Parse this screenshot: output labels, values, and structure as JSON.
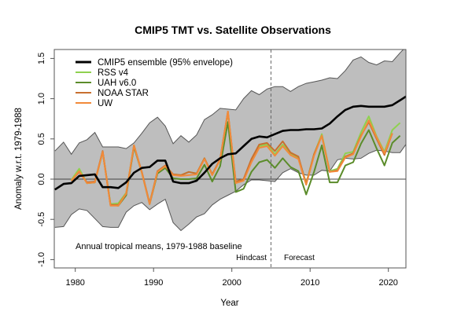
{
  "chart_data": {
    "type": "line",
    "title": "CMIP5 TMT vs. Satellite Observations",
    "xlabel": "Year",
    "ylabel": "Anomaly w.r.t. 1979-1988",
    "xlim": [
      1977.4,
      2022.3
    ],
    "ylim": [
      -1.1,
      1.6
    ],
    "xticks": [
      1980,
      1990,
      2000,
      2010,
      2020
    ],
    "xtick_labels": [
      "1980",
      "1990",
      "2000",
      "2010",
      "2020"
    ],
    "yticks": [
      -1.0,
      -0.5,
      0.0,
      0.5,
      1.0,
      1.5
    ],
    "ytick_labels": [
      "-1.0",
      "-0.5",
      "0.0",
      "0.5",
      "1.0",
      "1.5"
    ],
    "grid": false,
    "zero_line": true,
    "legend_position": "top-left",
    "annotations": {
      "baseline_note": "Annual tropical means, 1979-1988 baseline",
      "hindcast_label": "Hindcast",
      "forecast_label": "Forecast",
      "divider_year": 2005
    },
    "colors": {
      "envelope_fill": "#bebebe",
      "envelope_edge": "#555555",
      "ensemble": "#000000",
      "RSS v4": "#8fd14f",
      "UAH v6.0": "#5b8c2a",
      "NOAA STAR": "#c8702f",
      "UW": "#f28a3a"
    },
    "envelope": {
      "name": "CMIP5 ensemble (95% envelope)",
      "x": [
        1977.4,
        1978.5,
        1979.5,
        1980.5,
        1981.5,
        1982.5,
        1983.5,
        1984.5,
        1985.5,
        1986.5,
        1987.5,
        1988.5,
        1989.5,
        1990.5,
        1991.5,
        1992.5,
        1993.5,
        1994.5,
        1995.5,
        1996.5,
        1997.5,
        1998.5,
        1999.5,
        2000.5,
        2001.5,
        2002.5,
        2003.5,
        2004.5,
        2005.5,
        2006.5,
        2007.5,
        2008.5,
        2009.5,
        2010.5,
        2011.5,
        2012.5,
        2013.5,
        2014.5,
        2015.5,
        2016.5,
        2017.5,
        2018.5,
        2019.5,
        2020.5,
        2021.5,
        2022.3
      ],
      "upper": [
        0.35,
        0.46,
        0.31,
        0.45,
        0.49,
        0.58,
        0.4,
        0.4,
        0.4,
        0.38,
        0.45,
        0.57,
        0.7,
        0.77,
        0.66,
        0.44,
        0.54,
        0.46,
        0.55,
        0.74,
        0.8,
        0.88,
        0.87,
        0.86,
        1.0,
        1.1,
        1.05,
        1.12,
        1.15,
        1.15,
        1.09,
        1.15,
        1.19,
        1.21,
        1.23,
        1.26,
        1.25,
        1.35,
        1.48,
        1.52,
        1.45,
        1.42,
        1.47,
        1.46,
        1.57,
        1.65
      ],
      "lower": [
        -0.6,
        -0.59,
        -0.44,
        -0.37,
        -0.39,
        -0.49,
        -0.59,
        -0.6,
        -0.6,
        -0.41,
        -0.33,
        -0.29,
        -0.38,
        -0.31,
        -0.25,
        -0.54,
        -0.64,
        -0.56,
        -0.47,
        -0.43,
        -0.32,
        -0.25,
        -0.2,
        -0.15,
        -0.07,
        -0.01,
        -0.01,
        -0.02,
        -0.03,
        0.08,
        0.13,
        0.08,
        0.05,
        0.05,
        0.11,
        0.1,
        0.24,
        0.26,
        0.25,
        0.26,
        0.32,
        0.36,
        0.35,
        0.33,
        0.33,
        0.44
      ]
    },
    "series": [
      {
        "name": "CMIP5 ensemble (95% envelope)",
        "x": [
          1977.4,
          1978.5,
          1979.5,
          1980.5,
          1981.5,
          1982.5,
          1983.5,
          1984.5,
          1985.5,
          1986.5,
          1987.5,
          1988.5,
          1989.5,
          1990.5,
          1991.5,
          1992.5,
          1993.5,
          1994.5,
          1995.5,
          1996.5,
          1997.5,
          1998.5,
          1999.5,
          2000.5,
          2001.5,
          2002.5,
          2003.5,
          2004.5,
          2005.5,
          2006.5,
          2007.5,
          2008.5,
          2009.5,
          2010.5,
          2011.5,
          2012.5,
          2013.5,
          2014.5,
          2015.5,
          2016.5,
          2017.5,
          2018.5,
          2019.5,
          2020.5,
          2021.5,
          2022.3
        ],
        "values": [
          -0.13,
          -0.06,
          -0.05,
          0.04,
          0.05,
          0.06,
          -0.1,
          -0.1,
          -0.11,
          -0.04,
          0.08,
          0.14,
          0.15,
          0.23,
          0.23,
          -0.03,
          -0.05,
          -0.05,
          -0.02,
          0.08,
          0.19,
          0.26,
          0.31,
          0.32,
          0.41,
          0.5,
          0.53,
          0.52,
          0.56,
          0.6,
          0.61,
          0.61,
          0.62,
          0.62,
          0.63,
          0.69,
          0.78,
          0.86,
          0.9,
          0.91,
          0.9,
          0.9,
          0.9,
          0.92,
          0.98,
          1.03
        ]
      },
      {
        "name": "RSS v4",
        "x": [
          1979.5,
          1980.5,
          1981.5,
          1982.5,
          1983.5,
          1984.5,
          1985.5,
          1986.5,
          1987.5,
          1988.5,
          1989.5,
          1990.5,
          1991.5,
          1992.5,
          1993.5,
          1994.5,
          1995.5,
          1996.5,
          1997.5,
          1998.5,
          1999.5,
          2000.5,
          2001.5,
          2002.5,
          2003.5,
          2004.5,
          2005.5,
          2006.5,
          2007.5,
          2008.5,
          2009.5,
          2010.5,
          2011.5,
          2012.5,
          2013.5,
          2014.5,
          2015.5,
          2016.5,
          2017.5,
          2018.5,
          2019.5,
          2020.5,
          2021.5
        ],
        "values": [
          -0.01,
          0.13,
          -0.05,
          -0.04,
          0.34,
          -0.31,
          -0.3,
          -0.17,
          0.42,
          0.08,
          -0.3,
          0.09,
          0.16,
          0.06,
          0.05,
          0.09,
          0.07,
          0.26,
          0.06,
          0.24,
          0.83,
          -0.04,
          -0.01,
          0.23,
          0.41,
          0.43,
          0.31,
          0.43,
          0.32,
          0.27,
          -0.05,
          0.31,
          0.56,
          0.1,
          0.13,
          0.32,
          0.34,
          0.58,
          0.78,
          0.53,
          0.34,
          0.61,
          0.7
        ]
      },
      {
        "name": "UAH v6.0",
        "x": [
          1979.5,
          1980.5,
          1981.5,
          1982.5,
          1983.5,
          1984.5,
          1985.5,
          1986.5,
          1987.5,
          1988.5,
          1989.5,
          1990.5,
          1991.5,
          1992.5,
          1993.5,
          1994.5,
          1995.5,
          1996.5,
          1997.5,
          1998.5,
          1999.5,
          2000.5,
          2001.5,
          2002.5,
          2003.5,
          2004.5,
          2005.5,
          2006.5,
          2007.5,
          2008.5,
          2009.5,
          2010.5,
          2011.5,
          2012.5,
          2013.5,
          2014.5,
          2015.5,
          2016.5,
          2017.5,
          2018.5,
          2019.5,
          2020.5,
          2021.5
        ],
        "values": [
          -0.02,
          0.11,
          -0.05,
          -0.04,
          0.34,
          -0.32,
          -0.33,
          -0.2,
          0.4,
          0.08,
          -0.31,
          0.07,
          0.14,
          0.01,
          0.0,
          0.0,
          0.01,
          0.18,
          -0.03,
          0.16,
          0.71,
          -0.16,
          -0.12,
          0.09,
          0.21,
          0.24,
          0.14,
          0.26,
          0.15,
          0.1,
          -0.19,
          0.09,
          0.42,
          -0.04,
          -0.04,
          0.17,
          0.21,
          0.44,
          0.61,
          0.38,
          0.17,
          0.45,
          0.54
        ]
      },
      {
        "name": "NOAA STAR",
        "x": [
          1979.5,
          1980.5,
          1981.5,
          1982.5,
          1983.5,
          1984.5,
          1985.5,
          1986.5,
          1987.5,
          1988.5,
          1989.5,
          1990.5,
          1991.5,
          1992.5,
          1993.5,
          1994.5,
          1995.5,
          1996.5,
          1997.5,
          1998.5,
          1999.5,
          2000.5,
          2001.5,
          2002.5,
          2003.5,
          2004.5,
          2005.5,
          2006.5,
          2007.5,
          2008.5,
          2009.5,
          2010.5,
          2011.5,
          2012.5,
          2013.5,
          2014.5,
          2015.5,
          2016.5,
          2017.5,
          2018.5,
          2019.5,
          2020.5
        ],
        "values": [
          -0.02,
          0.09,
          -0.04,
          -0.03,
          0.35,
          -0.32,
          -0.32,
          -0.18,
          0.42,
          0.09,
          -0.3,
          0.1,
          0.17,
          0.06,
          0.05,
          0.09,
          0.07,
          0.26,
          0.06,
          0.25,
          0.84,
          -0.03,
          0.0,
          0.25,
          0.43,
          0.45,
          0.35,
          0.47,
          0.33,
          0.28,
          -0.06,
          0.31,
          0.54,
          0.09,
          0.11,
          0.28,
          0.32,
          0.54,
          0.71,
          0.5,
          0.3,
          0.57
        ]
      },
      {
        "name": "UW",
        "x": [
          1979.5,
          1980.5,
          1981.5,
          1982.5,
          1983.5,
          1984.5,
          1985.5,
          1986.5,
          1987.5,
          1988.5,
          1989.5,
          1990.5,
          1991.5,
          1992.5,
          1993.5,
          1994.5,
          1995.5,
          1996.5,
          1997.5,
          1998.5,
          1999.5,
          2000.5,
          2001.5,
          2002.5,
          2003.5,
          2004.5,
          2005.5,
          2006.5,
          2007.5,
          2008.5,
          2009.5,
          2010.5,
          2011.5,
          2012.5,
          2013.5,
          2014.5,
          2015.5,
          2016.5,
          2017.5,
          2018.5,
          2019.5,
          2020.5
        ],
        "values": [
          -0.02,
          0.1,
          -0.05,
          -0.04,
          0.34,
          -0.33,
          -0.33,
          -0.18,
          0.42,
          0.08,
          -0.31,
          0.09,
          0.16,
          0.05,
          0.04,
          0.05,
          0.06,
          0.25,
          0.05,
          0.24,
          0.84,
          -0.05,
          -0.02,
          0.21,
          0.39,
          0.41,
          0.29,
          0.41,
          0.3,
          0.25,
          -0.07,
          0.29,
          0.54,
          0.09,
          0.1,
          0.27,
          0.31,
          0.53,
          0.73,
          0.52,
          0.32,
          0.57
        ]
      }
    ]
  }
}
